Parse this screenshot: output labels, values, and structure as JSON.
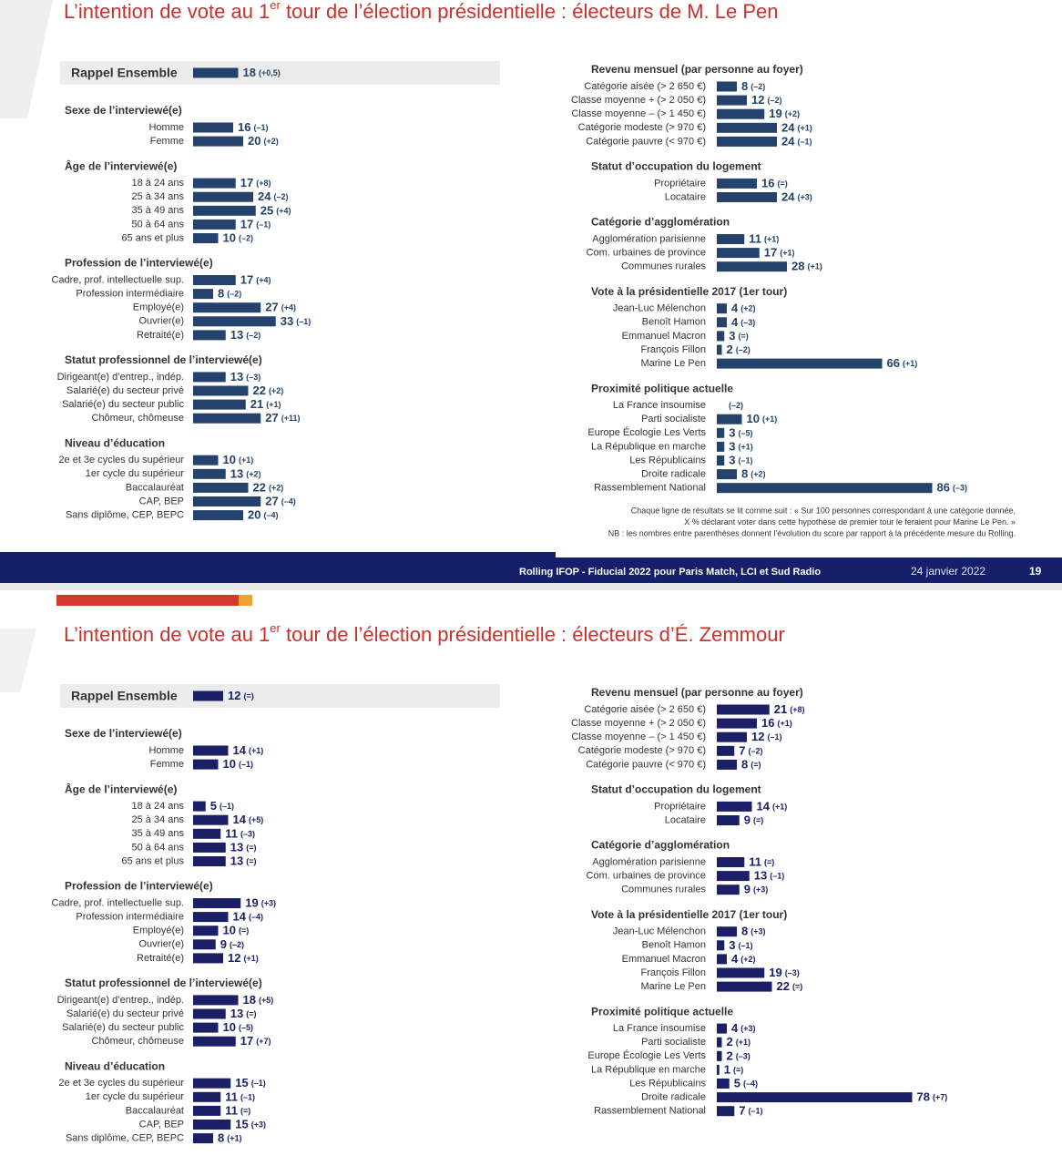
{
  "slides": [
    {
      "title": {
        "before": "L’intention de vote au 1",
        "sup": "er",
        "after": " tour de l’élection présidentielle : électeurs de M. Le Pen"
      },
      "rappel": {
        "label": "Rappel Ensemble",
        "value": 18,
        "change": "(+0,5)"
      },
      "left": [
        {
          "header": "Sexe de l’interviewé(e)",
          "rows": [
            {
              "label": "Homme",
              "value": 16,
              "change": "(–1)"
            },
            {
              "label": "Femme",
              "value": 20,
              "change": "(+2)"
            }
          ]
        },
        {
          "header": "Âge de l’interviewé(e)",
          "rows": [
            {
              "label": "18 à 24 ans",
              "value": 17,
              "change": "(+8)"
            },
            {
              "label": "25 à 34 ans",
              "value": 24,
              "change": "(–2)"
            },
            {
              "label": "35 à 49 ans",
              "value": 25,
              "change": "(+4)"
            },
            {
              "label": "50 à 64 ans",
              "value": 17,
              "change": "(–1)"
            },
            {
              "label": "65 ans et plus",
              "value": 10,
              "change": "(–2)"
            }
          ]
        },
        {
          "header": "Profession de l’interviewé(e)",
          "rows": [
            {
              "label": "Cadre, prof. intellectuelle sup.",
              "value": 17,
              "change": "(+4)"
            },
            {
              "label": "Profession intermédiaire",
              "value": 8,
              "change": "(–2)"
            },
            {
              "label": "Employé(e)",
              "value": 27,
              "change": "(+4)"
            },
            {
              "label": "Ouvrier(e)",
              "value": 33,
              "change": "(–1)"
            },
            {
              "label": "Retraité(e)",
              "value": 13,
              "change": "(–2)"
            }
          ]
        },
        {
          "header": "Statut professionnel de l’interviewé(e)",
          "rows": [
            {
              "label": "Dirigeant(e) d’entrep., indép.",
              "value": 13,
              "change": "(–3)"
            },
            {
              "label": "Salarié(e) du secteur privé",
              "value": 22,
              "change": "(+2)"
            },
            {
              "label": "Salarié(e) du secteur public",
              "value": 21,
              "change": "(+1)"
            },
            {
              "label": "Chômeur, chômeuse",
              "value": 27,
              "change": "(+11)"
            }
          ]
        },
        {
          "header": "Niveau d’éducation",
          "rows": [
            {
              "label": "2e et 3e cycles du supérieur",
              "value": 10,
              "change": "(+1)"
            },
            {
              "label": "1er cycle du supérieur",
              "value": 13,
              "change": "(+2)"
            },
            {
              "label": "Baccalauréat",
              "value": 22,
              "change": "(+2)"
            },
            {
              "label": "CAP, BEP",
              "value": 27,
              "change": "(–4)"
            },
            {
              "label": "Sans diplôme, CEP, BEPC",
              "value": 20,
              "change": "(–4)"
            }
          ]
        }
      ],
      "right": [
        {
          "header": "Revenu mensuel (par personne au foyer)",
          "rows": [
            {
              "label": "Catégorie aisée (> 2 650 €)",
              "value": 8,
              "change": "(–2)"
            },
            {
              "label": "Classe moyenne + (> 2 050 €)",
              "value": 12,
              "change": "(–2)"
            },
            {
              "label": "Classe moyenne – (> 1 450 €)",
              "value": 19,
              "change": "(+2)"
            },
            {
              "label": "Catégorie modeste (> 970 €)",
              "value": 24,
              "change": "(+1)"
            },
            {
              "label": "Catégorie pauvre (< 970 €)",
              "value": 24,
              "change": "(–1)"
            }
          ]
        },
        {
          "header": "Statut d’occupation du logement",
          "rows": [
            {
              "label": "Propriétaire",
              "value": 16,
              "change": "(=)"
            },
            {
              "label": "Locataire",
              "value": 24,
              "change": "(+3)"
            }
          ]
        },
        {
          "header": "Catégorie d’agglomération",
          "rows": [
            {
              "label": "Agglomération parisienne",
              "value": 11,
              "change": "(+1)"
            },
            {
              "label": "Com. urbaines de province",
              "value": 17,
              "change": "(+1)"
            },
            {
              "label": "Communes rurales",
              "value": 28,
              "change": "(+1)"
            }
          ]
        },
        {
          "header": "Vote à la présidentielle 2017 (1er tour)",
          "rows": [
            {
              "label": "Jean-Luc Mélenchon",
              "value": 4,
              "change": "(+2)"
            },
            {
              "label": "Benoît Hamon",
              "value": 4,
              "change": "(–3)"
            },
            {
              "label": "Emmanuel Macron",
              "value": 3,
              "change": "(=)"
            },
            {
              "label": "François Fillon",
              "value": 2,
              "change": "(–2)"
            },
            {
              "label": "Marine Le Pen",
              "value": 66,
              "change": "(+1)"
            }
          ]
        },
        {
          "header": "Proximité politique actuelle",
          "rows": [
            {
              "label": "La France insoumise",
              "value": null,
              "change": "(–2)"
            },
            {
              "label": "Parti socialiste",
              "value": 10,
              "change": "(+1)"
            },
            {
              "label": "Europe Écologie Les Verts",
              "value": 3,
              "change": "(–5)"
            },
            {
              "label": "La République en marche",
              "value": 3,
              "change": "(+1)"
            },
            {
              "label": "Les Républicains",
              "value": 3,
              "change": "(–1)"
            },
            {
              "label": "Droite radicale",
              "value": 8,
              "change": "(+2)"
            },
            {
              "label": "Rassemblement National",
              "value": 86,
              "change": "(–3)"
            }
          ]
        }
      ],
      "notes": [
        "Chaque ligne de résultats se lit comme suit : « Sur 100 personnes correspondant à une catégorie donnée,",
        "X % déclarant voter dans cette hypothèse de premier tour le feraient pour Marine Le Pen. »",
        "NB : les nombres entre parenthèses donnent l’évolution du score par rapport à la précédente mesure du Rolling."
      ],
      "footer": {
        "source": "Rolling IFOP - Fiducial 2022 pour Paris Match, LCI et Sud Radio",
        "date": "24 janvier 2022",
        "page": 19
      }
    },
    {
      "title": {
        "before": "L’intention de vote au 1",
        "sup": "er",
        "after": " tour de l’élection présidentielle : électeurs d’É. Zemmour"
      },
      "rappel": {
        "label": "Rappel Ensemble",
        "value": 12,
        "change": "(=)"
      },
      "left": [
        {
          "header": "Sexe de l’interviewé(e)",
          "rows": [
            {
              "label": "Homme",
              "value": 14,
              "change": "(+1)"
            },
            {
              "label": "Femme",
              "value": 10,
              "change": "(–1)"
            }
          ]
        },
        {
          "header": "Âge de l’interviewé(e)",
          "rows": [
            {
              "label": "18 à 24 ans",
              "value": 5,
              "change": "(–1)"
            },
            {
              "label": "25 à 34 ans",
              "value": 14,
              "change": "(+5)"
            },
            {
              "label": "35 à 49 ans",
              "value": 11,
              "change": "(–3)"
            },
            {
              "label": "50 à 64 ans",
              "value": 13,
              "change": "(=)"
            },
            {
              "label": "65 ans et plus",
              "value": 13,
              "change": "(=)"
            }
          ]
        },
        {
          "header": "Profession de l’interviewé(e)",
          "rows": [
            {
              "label": "Cadre, prof. intellectuelle sup.",
              "value": 19,
              "change": "(+3)"
            },
            {
              "label": "Profession intermédiaire",
              "value": 14,
              "change": "(–4)"
            },
            {
              "label": "Employé(e)",
              "value": 10,
              "change": "(=)"
            },
            {
              "label": "Ouvrier(e)",
              "value": 9,
              "change": "(–2)"
            },
            {
              "label": "Retraité(e)",
              "value": 12,
              "change": "(+1)"
            }
          ]
        },
        {
          "header": "Statut professionnel de l’interviewé(e)",
          "rows": [
            {
              "label": "Dirigeant(e) d’entrep., indép.",
              "value": 18,
              "change": "(+5)"
            },
            {
              "label": "Salarié(e) du secteur privé",
              "value": 13,
              "change": "(=)"
            },
            {
              "label": "Salarié(e) du secteur public",
              "value": 10,
              "change": "(–5)"
            },
            {
              "label": "Chômeur, chômeuse",
              "value": 17,
              "change": "(+7)"
            }
          ]
        },
        {
          "header": "Niveau d’éducation",
          "rows": [
            {
              "label": "2e et 3e cycles du supérieur",
              "value": 15,
              "change": "(–1)"
            },
            {
              "label": "1er cycle du supérieur",
              "value": 11,
              "change": "(–1)"
            },
            {
              "label": "Baccalauréat",
              "value": 11,
              "change": "(=)"
            },
            {
              "label": "CAP, BEP",
              "value": 15,
              "change": "(+3)"
            },
            {
              "label": "Sans diplôme, CEP, BEPC",
              "value": 8,
              "change": "(+1)"
            }
          ]
        }
      ],
      "right": [
        {
          "header": "Revenu mensuel (par personne au foyer)",
          "rows": [
            {
              "label": "Catégorie aisée (> 2 650 €)",
              "value": 21,
              "change": "(+8)"
            },
            {
              "label": "Classe moyenne + (> 2 050 €)",
              "value": 16,
              "change": "(+1)"
            },
            {
              "label": "Classe moyenne – (> 1 450 €)",
              "value": 12,
              "change": "(–1)"
            },
            {
              "label": "Catégorie modeste (> 970 €)",
              "value": 7,
              "change": "(–2)"
            },
            {
              "label": "Catégorie pauvre (< 970 €)",
              "value": 8,
              "change": "(=)"
            }
          ]
        },
        {
          "header": "Statut d’occupation du logement",
          "rows": [
            {
              "label": "Propriétaire",
              "value": 14,
              "change": "(+1)"
            },
            {
              "label": "Locataire",
              "value": 9,
              "change": "(=)"
            }
          ]
        },
        {
          "header": "Catégorie d’agglomération",
          "rows": [
            {
              "label": "Agglomération parisienne",
              "value": 11,
              "change": "(=)"
            },
            {
              "label": "Com. urbaines de province",
              "value": 13,
              "change": "(–1)"
            },
            {
              "label": "Communes rurales",
              "value": 9,
              "change": "(+3)"
            }
          ]
        },
        {
          "header": "Vote à la présidentielle 2017 (1er tour)",
          "rows": [
            {
              "label": "Jean-Luc Mélenchon",
              "value": 8,
              "change": "(+3)"
            },
            {
              "label": "Benoît Hamon",
              "value": 3,
              "change": "(–1)"
            },
            {
              "label": "Emmanuel Macron",
              "value": 4,
              "change": "(+2)"
            },
            {
              "label": "François Fillon",
              "value": 19,
              "change": "(–3)"
            },
            {
              "label": "Marine Le Pen",
              "value": 22,
              "change": "(=)"
            }
          ]
        },
        {
          "header": "Proximité politique actuelle",
          "rows": [
            {
              "label": "La France insoumise",
              "value": 4,
              "change": "(+3)"
            },
            {
              "label": "Parti socialiste",
              "value": 2,
              "change": "(+1)"
            },
            {
              "label": "Europe Écologie Les Verts",
              "value": 2,
              "change": "(–3)"
            },
            {
              "label": "La République en marche",
              "value": 1,
              "change": "(=)"
            },
            {
              "label": "Les Républicains",
              "value": 5,
              "change": "(–4)"
            },
            {
              "label": "Droite radicale",
              "value": 78,
              "change": "(+7)"
            },
            {
              "label": "Rassemblement National",
              "value": 7,
              "change": "(–1)"
            }
          ]
        }
      ]
    }
  ]
}
